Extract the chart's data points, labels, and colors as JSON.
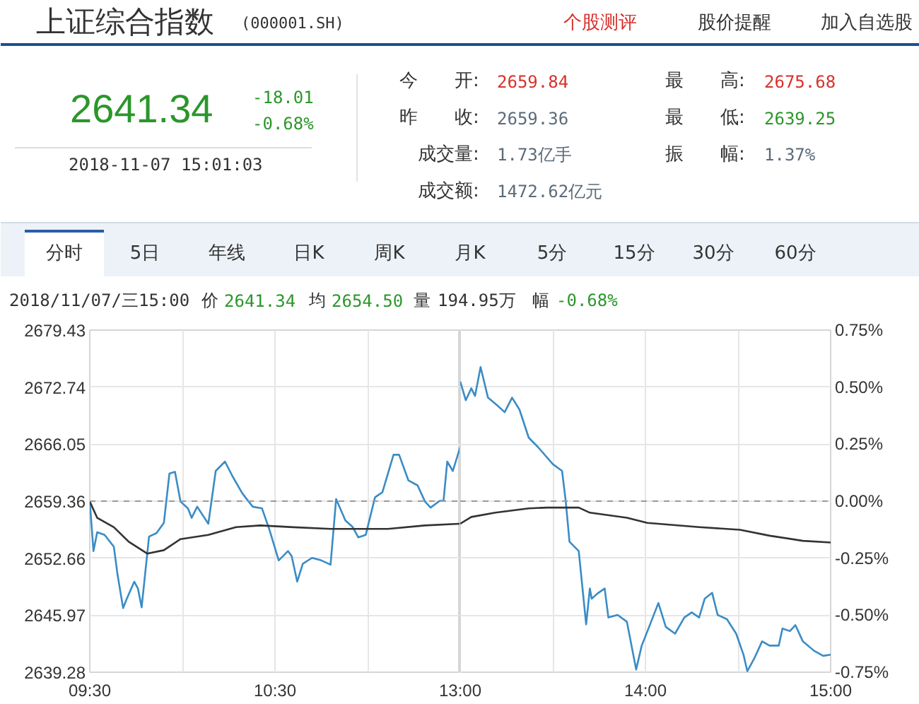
{
  "chart_data": [
    {
      "type": "line",
      "title": "上证综合指数",
      "subtitle": "(000001.SH)",
      "annotations": [
        "个股测评",
        "股价提醒",
        "加入自选股",
        "2641.34",
        "-18.01",
        "-0.68%",
        "2018-11-07 15:01:03",
        "今　　开:",
        "2659.84",
        "昨　　收:",
        "2659.36",
        "成交量:",
        "1.73亿手",
        "成交额:",
        "1472.62亿元",
        "最　　高:",
        "2675.68",
        "最　　低:",
        "2639.25",
        "振　　幅:",
        "1.37%",
        "分时",
        "5日",
        "年线",
        "日K",
        "周K",
        "月K",
        "5分",
        "15分",
        "30分",
        "60分",
        "2018/11/07/三15:00",
        "价",
        "2641.34",
        "均",
        "2654.50",
        "量",
        "194.95万",
        "幅",
        "-0.68%"
      ],
      "xlim": [
        9.5,
        11.5
      ],
      "xticks": [
        {
          "value": 9.5,
          "label": "09:30"
        },
        {
          "value": 10,
          "label": null
        },
        {
          "value": 10.5,
          "label": "10:30"
        },
        {
          "value": 11,
          "label": null
        }
      ],
      "ylim": [
        2639.28,
        2679.43
      ],
      "yticks": [
        2639.28,
        2645.97,
        2652.66,
        2659.36,
        2666.05,
        2672.74,
        2679.43
      ],
      "grid": true,
      "ref_lines": [
        {
          "axis": "y",
          "value": 2659.36,
          "color": "#999999",
          "line_style": "dashed"
        }
      ],
      "series": [
        {
          "color": "#3a8cc6",
          "x": [
            9.5,
            9.52,
            9.54,
            9.58,
            9.63,
            9.65,
            9.68,
            9.7,
            9.74,
            9.76,
            9.78,
            9.82,
            9.86,
            9.9,
            9.93,
            9.96,
            9.99,
            10.03,
            10.05,
            10.08,
            10.14,
            10.18,
            10.23,
            10.27,
            10.32,
            10.34,
            10.38,
            10.43,
            10.47,
            10.52,
            10.57,
            10.59,
            10.62,
            10.65,
            10.7,
            10.75,
            10.8,
            10.83,
            10.88,
            10.92,
            10.95,
            10.99,
            11.04,
            11.08,
            11.14,
            11.17,
            11.22,
            11.27,
            11.31,
            11.34,
            11.39,
            11.41,
            11.43,
            11.46,
            11.5
          ],
          "values": [
            2659.3,
            2653.5,
            2655.7,
            2655.4,
            2654.0,
            2650.7,
            2646.8,
            2647.9,
            2649.9,
            2649.1,
            2646.9,
            2655.2,
            2655.6,
            2656.8,
            2662.6,
            2662.8,
            2659.3,
            2658.5,
            2657.4,
            2658.7,
            2656.7,
            2662.9,
            2664.0,
            2662.3,
            2660.4,
            2659.8,
            2658.7,
            2658.5,
            2656.0,
            2652.4,
            2653.5,
            2652.9,
            2649.9,
            2652.0,
            2652.7,
            2652.4,
            2651.9,
            2659.6,
            2657.1,
            2656.3,
            2655.1,
            2655.4,
            2659.8,
            2660.4,
            2664.8,
            2664.8,
            2661.8,
            2661.2,
            2659.3,
            2658.6,
            2659.4,
            2659.4,
            2664.0,
            2662.9,
            2665.7
          ]
        },
        {
          "color": "#333333",
          "x": [
            9.5,
            9.54,
            9.63,
            9.71,
            9.81,
            9.9,
            9.99,
            10.14,
            10.29,
            10.42,
            10.6,
            10.8,
            11.11,
            11.31,
            11.5
          ],
          "values": [
            2659.3,
            2657.4,
            2656.3,
            2654.6,
            2653.2,
            2653.6,
            2654.9,
            2655.4,
            2656.3,
            2656.5,
            2656.3,
            2656.1,
            2656.1,
            2656.5,
            2656.7
          ]
        }
      ]
    },
    {
      "type": "line",
      "xlim": [
        13,
        15
      ],
      "xticks": [
        {
          "value": 13,
          "label": "13:00"
        },
        {
          "value": 13.5,
          "label": null
        },
        {
          "value": 14,
          "label": "14:00"
        },
        {
          "value": 14.5,
          "label": null
        },
        {
          "value": 15,
          "label": "15:00"
        }
      ],
      "ylim": [
        2639.28,
        2679.43
      ],
      "y2lim": [
        -0.75,
        0.75
      ],
      "y2ticks": [
        {
          "value": -0.75,
          "label": "-0.75%"
        },
        {
          "value": -0.5,
          "label": "-0.50%"
        },
        {
          "value": -0.25,
          "label": "-0.25%"
        },
        {
          "value": 0,
          "label": "0.00%"
        },
        {
          "value": 0.25,
          "label": "0.25%"
        },
        {
          "value": 0.5,
          "label": "0.50%"
        },
        {
          "value": 0.75,
          "label": "0.75%"
        }
      ],
      "grid": true,
      "ref_lines": [
        {
          "axis": "y",
          "value": 2659.36,
          "color": "#999999",
          "line_style": "dashed"
        }
      ],
      "series": [
        {
          "color": "#3a8cc6",
          "x": [
            13.0,
            13.03,
            13.06,
            13.08,
            13.11,
            13.15,
            13.2,
            13.24,
            13.28,
            13.32,
            13.37,
            13.42,
            13.5,
            13.55,
            13.57,
            13.59,
            13.64,
            13.68,
            13.7,
            13.71,
            13.74,
            13.78,
            13.8,
            13.85,
            13.9,
            13.95,
            13.98,
            14.02,
            14.07,
            14.11,
            14.16,
            14.21,
            14.25,
            14.29,
            14.32,
            14.36,
            14.39,
            14.44,
            14.49,
            14.53,
            14.55,
            14.59,
            14.63,
            14.67,
            14.72,
            14.74,
            14.78,
            14.81,
            14.85,
            14.91,
            14.96,
            15
          ],
          "values": [
            2673.4,
            2671.2,
            2672.6,
            2671.7,
            2675.1,
            2671.5,
            2670.6,
            2669.8,
            2671.5,
            2670.1,
            2666.8,
            2665.7,
            2663.7,
            2662.9,
            2659.3,
            2654.6,
            2653.5,
            2644.9,
            2649.1,
            2647.9,
            2648.5,
            2649.1,
            2645.7,
            2646.0,
            2645.2,
            2639.6,
            2642.4,
            2644.6,
            2647.4,
            2644.6,
            2643.8,
            2645.7,
            2646.3,
            2645.7,
            2647.9,
            2648.6,
            2646.0,
            2645.5,
            2643.8,
            2641.3,
            2639.4,
            2641.0,
            2642.9,
            2642.4,
            2642.4,
            2644.4,
            2644.1,
            2644.8,
            2642.9,
            2641.8,
            2641.2,
            2641.34
          ]
        },
        {
          "color": "#333333",
          "x": [
            13.0,
            13.06,
            13.19,
            13.37,
            13.47,
            13.64,
            13.7,
            13.9,
            14.01,
            14.29,
            14.51,
            14.67,
            14.85,
            15
          ],
          "values": [
            2656.7,
            2657.5,
            2658.0,
            2658.5,
            2658.6,
            2658.6,
            2658.0,
            2657.4,
            2656.8,
            2656.3,
            2656.0,
            2655.3,
            2654.7,
            2654.5
          ]
        }
      ]
    }
  ]
}
